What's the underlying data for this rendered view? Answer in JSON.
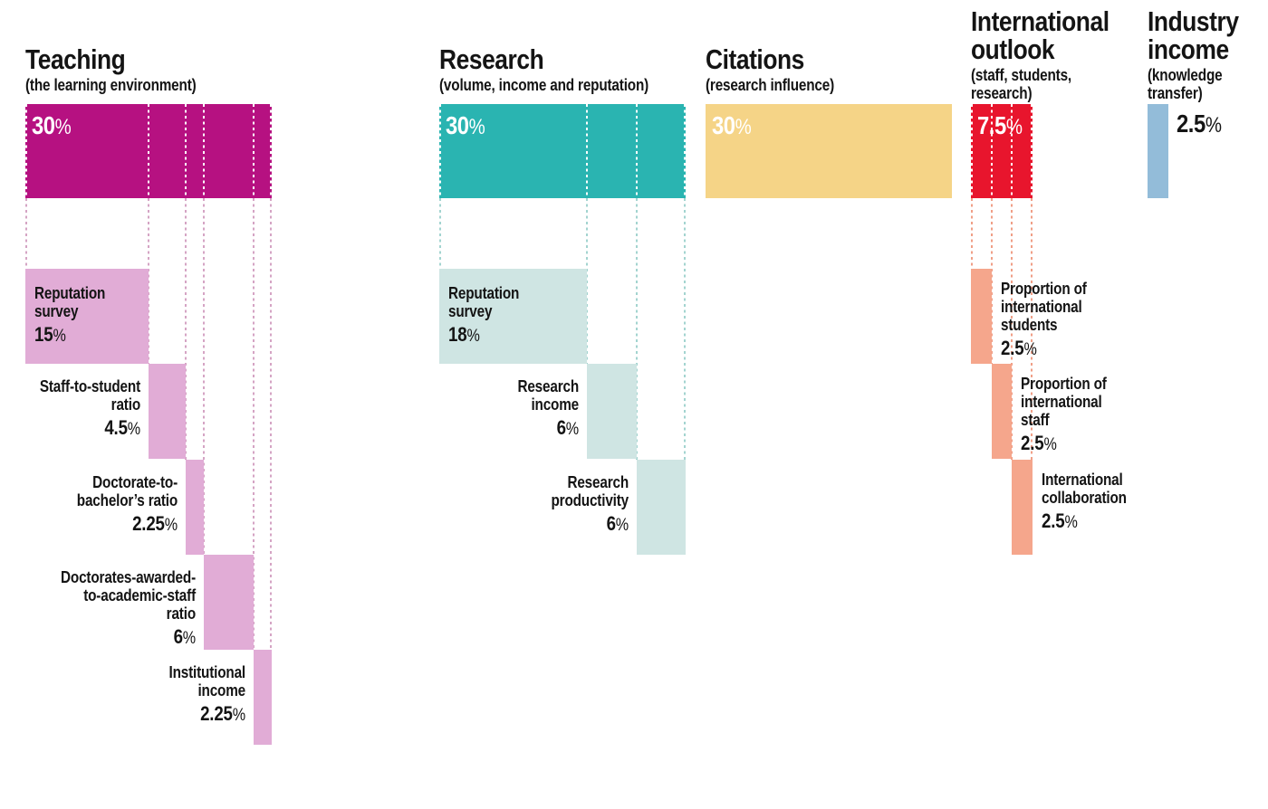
{
  "chart_data": {
    "type": "bar",
    "description_visible_text_only": "Weighted breakdown of ranking pillars and their component indicators",
    "unit": "%",
    "layout_hint": "five horizontal weight bars with stepped component sub-bars and dotted guide lines",
    "categories": [
      {
        "id": "teaching",
        "title_lines": [
          "Teaching"
        ],
        "subtitle_lines": [
          "(the learning environment)"
        ],
        "weight_pct": 30,
        "weight_label": "30%",
        "color": "#b61181",
        "component_color": "#e1acd6",
        "guide_color": "#d5a4c4",
        "components": [
          {
            "name": "Reputation survey",
            "label_lines": [
              "Reputation",
              "survey"
            ],
            "weight_pct": 15,
            "weight_label": "15%",
            "label_side": "inside"
          },
          {
            "name": "Staff-to-student ratio",
            "label_lines": [
              "Staff-to-student",
              "ratio"
            ],
            "weight_pct": 4.5,
            "weight_label": "4.5%",
            "label_side": "left"
          },
          {
            "name": "Doctorate-to-bachelor’s ratio",
            "label_lines": [
              "Doctorate-to-",
              "bachelor’s ratio"
            ],
            "weight_pct": 2.25,
            "weight_label": "2.25%",
            "label_side": "left"
          },
          {
            "name": "Doctorates-awarded-to-academic-staff ratio",
            "label_lines": [
              "Doctorates-awarded-",
              "to-academic-staff",
              "ratio"
            ],
            "weight_pct": 6,
            "weight_label": "6%",
            "label_side": "left"
          },
          {
            "name": "Institutional income",
            "label_lines": [
              "Institutional",
              "income"
            ],
            "weight_pct": 2.25,
            "weight_label": "2.25%",
            "label_side": "left"
          }
        ]
      },
      {
        "id": "research",
        "title_lines": [
          "Research"
        ],
        "subtitle_lines": [
          "(volume, income and reputation)"
        ],
        "weight_pct": 30,
        "weight_label": "30%",
        "color": "#2ab4b1",
        "component_color": "#cfe5e3",
        "guide_color": "#a3d4d0",
        "components": [
          {
            "name": "Reputation survey",
            "label_lines": [
              "Reputation",
              "survey"
            ],
            "weight_pct": 18,
            "weight_label": "18%",
            "label_side": "inside"
          },
          {
            "name": "Research income",
            "label_lines": [
              "Research",
              "income"
            ],
            "weight_pct": 6,
            "weight_label": "6%",
            "label_side": "left"
          },
          {
            "name": "Research productivity",
            "label_lines": [
              "Research",
              "productivity"
            ],
            "weight_pct": 6,
            "weight_label": "6%",
            "label_side": "left"
          }
        ]
      },
      {
        "id": "citations",
        "title_lines": [
          "Citations"
        ],
        "subtitle_lines": [
          "(research influence)"
        ],
        "weight_pct": 30,
        "weight_label": "30%",
        "color": "#f5d487",
        "component_color": "",
        "guide_color": "",
        "components": []
      },
      {
        "id": "international-outlook",
        "title_lines": [
          "International",
          "outlook"
        ],
        "subtitle_lines": [
          "(staff, students,",
          "research)"
        ],
        "weight_pct": 7.5,
        "weight_label": "7.5%",
        "color": "#e8152d",
        "component_color": "#f5a68c",
        "guide_color": "#f09f87",
        "components": [
          {
            "name": "Proportion of international students",
            "label_lines": [
              "Proportion of",
              "international",
              "students"
            ],
            "weight_pct": 2.5,
            "weight_label": "2.5%",
            "label_side": "right"
          },
          {
            "name": "Proportion of international staff",
            "label_lines": [
              "Proportion of",
              "international",
              "staff"
            ],
            "weight_pct": 2.5,
            "weight_label": "2.5%",
            "label_side": "right"
          },
          {
            "name": "International collaboration",
            "label_lines": [
              "International",
              "collaboration"
            ],
            "weight_pct": 2.5,
            "weight_label": "2.5%",
            "label_side": "right"
          }
        ]
      },
      {
        "id": "industry-income",
        "title_lines": [
          "Industry",
          "income"
        ],
        "subtitle_lines": [
          "(knowledge",
          "transfer)"
        ],
        "weight_pct": 2.5,
        "weight_label": "2.5%",
        "label_outside": true,
        "color": "#93bcd9",
        "component_color": "",
        "guide_color": "",
        "components": []
      }
    ],
    "text_color": "#141414",
    "bar_value_text_color": "#ffffff"
  }
}
